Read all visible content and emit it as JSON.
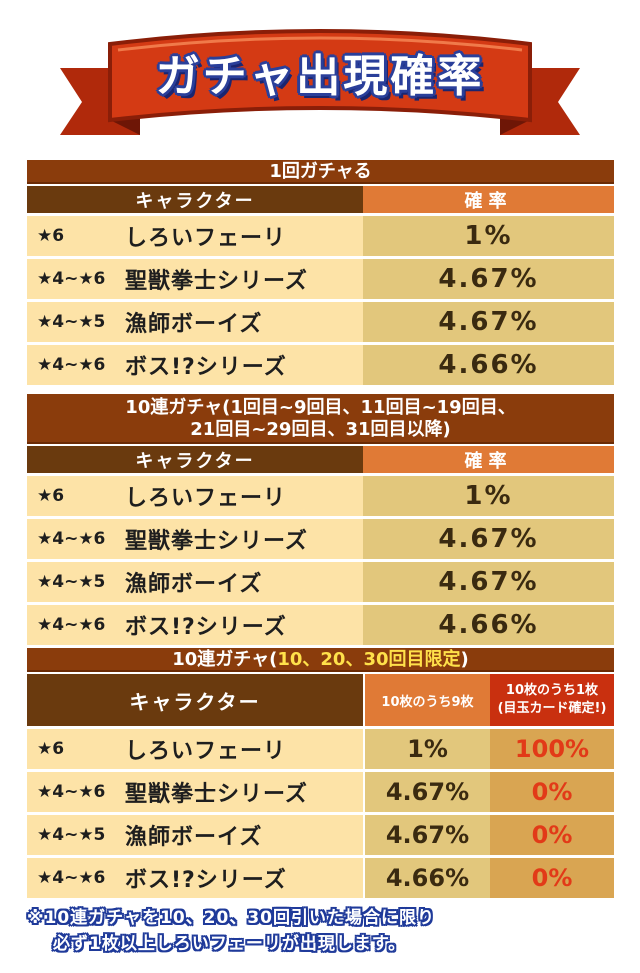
{
  "banner": {
    "title": "ガチャ出現確率"
  },
  "colors": {
    "ribbon_red": "#d43a14",
    "ribbon_dark": "#8a1e08",
    "section_title_bg": "#8a3c0c",
    "header_char_bg": "#6a3a0e",
    "header_rate_bg": "#e07a36",
    "row_char_bg": "#fde3a7",
    "row_rate_bg": "#e2c77c",
    "guaranteed_header_bg": "#c9300f",
    "guaranteed_value": "#e23a18",
    "highlight_text": "#ffe14a",
    "outline_blue": "#2a3f9a"
  },
  "table1": {
    "title": "1回ガチャる",
    "header": {
      "character": "キャラクター",
      "rate": "確率"
    },
    "rows": [
      {
        "stars": "★6",
        "name": "しろいフェーリ",
        "rate": "1%"
      },
      {
        "stars": "★4~★6",
        "name": "聖獣拳士シリーズ",
        "rate": "4.67%"
      },
      {
        "stars": "★4~★5",
        "name": "漁師ボーイズ",
        "rate": "4.67%"
      },
      {
        "stars": "★4~★6",
        "name": "ボス!?シリーズ",
        "rate": "4.66%"
      }
    ]
  },
  "table2": {
    "title_line1": "10連ガチャ(1回目~9回目、11回目~19回目、",
    "title_line2": "21回目~29回目、31回目以降)",
    "header": {
      "character": "キャラクター",
      "rate": "確率"
    },
    "rows": [
      {
        "stars": "★6",
        "name": "しろいフェーリ",
        "rate": "1%"
      },
      {
        "stars": "★4~★6",
        "name": "聖獣拳士シリーズ",
        "rate": "4.67%"
      },
      {
        "stars": "★4~★5",
        "name": "漁師ボーイズ",
        "rate": "4.67%"
      },
      {
        "stars": "★4~★6",
        "name": "ボス!?シリーズ",
        "rate": "4.66%"
      }
    ]
  },
  "table3": {
    "title_prefix": "10連ガチャ(",
    "title_highlight": "10、20、30回目限定",
    "title_suffix": ")",
    "header": {
      "character": "キャラクター",
      "rate_9": "10枚のうち9枚",
      "rate_1_line1": "10枚のうち1枚",
      "rate_1_line2": "(目玉カード確定!)"
    },
    "rows": [
      {
        "stars": "★6",
        "name": "しろいフェーリ",
        "rate_9": "1%",
        "rate_1": "100%"
      },
      {
        "stars": "★4~★6",
        "name": "聖獣拳士シリーズ",
        "rate_9": "4.67%",
        "rate_1": "0%"
      },
      {
        "stars": "★4~★5",
        "name": "漁師ボーイズ",
        "rate_9": "4.67%",
        "rate_1": "0%"
      },
      {
        "stars": "★4~★6",
        "name": "ボス!?シリーズ",
        "rate_9": "4.66%",
        "rate_1": "0%"
      }
    ]
  },
  "footnote": {
    "line1": "※10連ガチャを10、20、30回引いた場合に限り",
    "line2": "必ず1枚以上しろいフェーリが出現します。"
  }
}
